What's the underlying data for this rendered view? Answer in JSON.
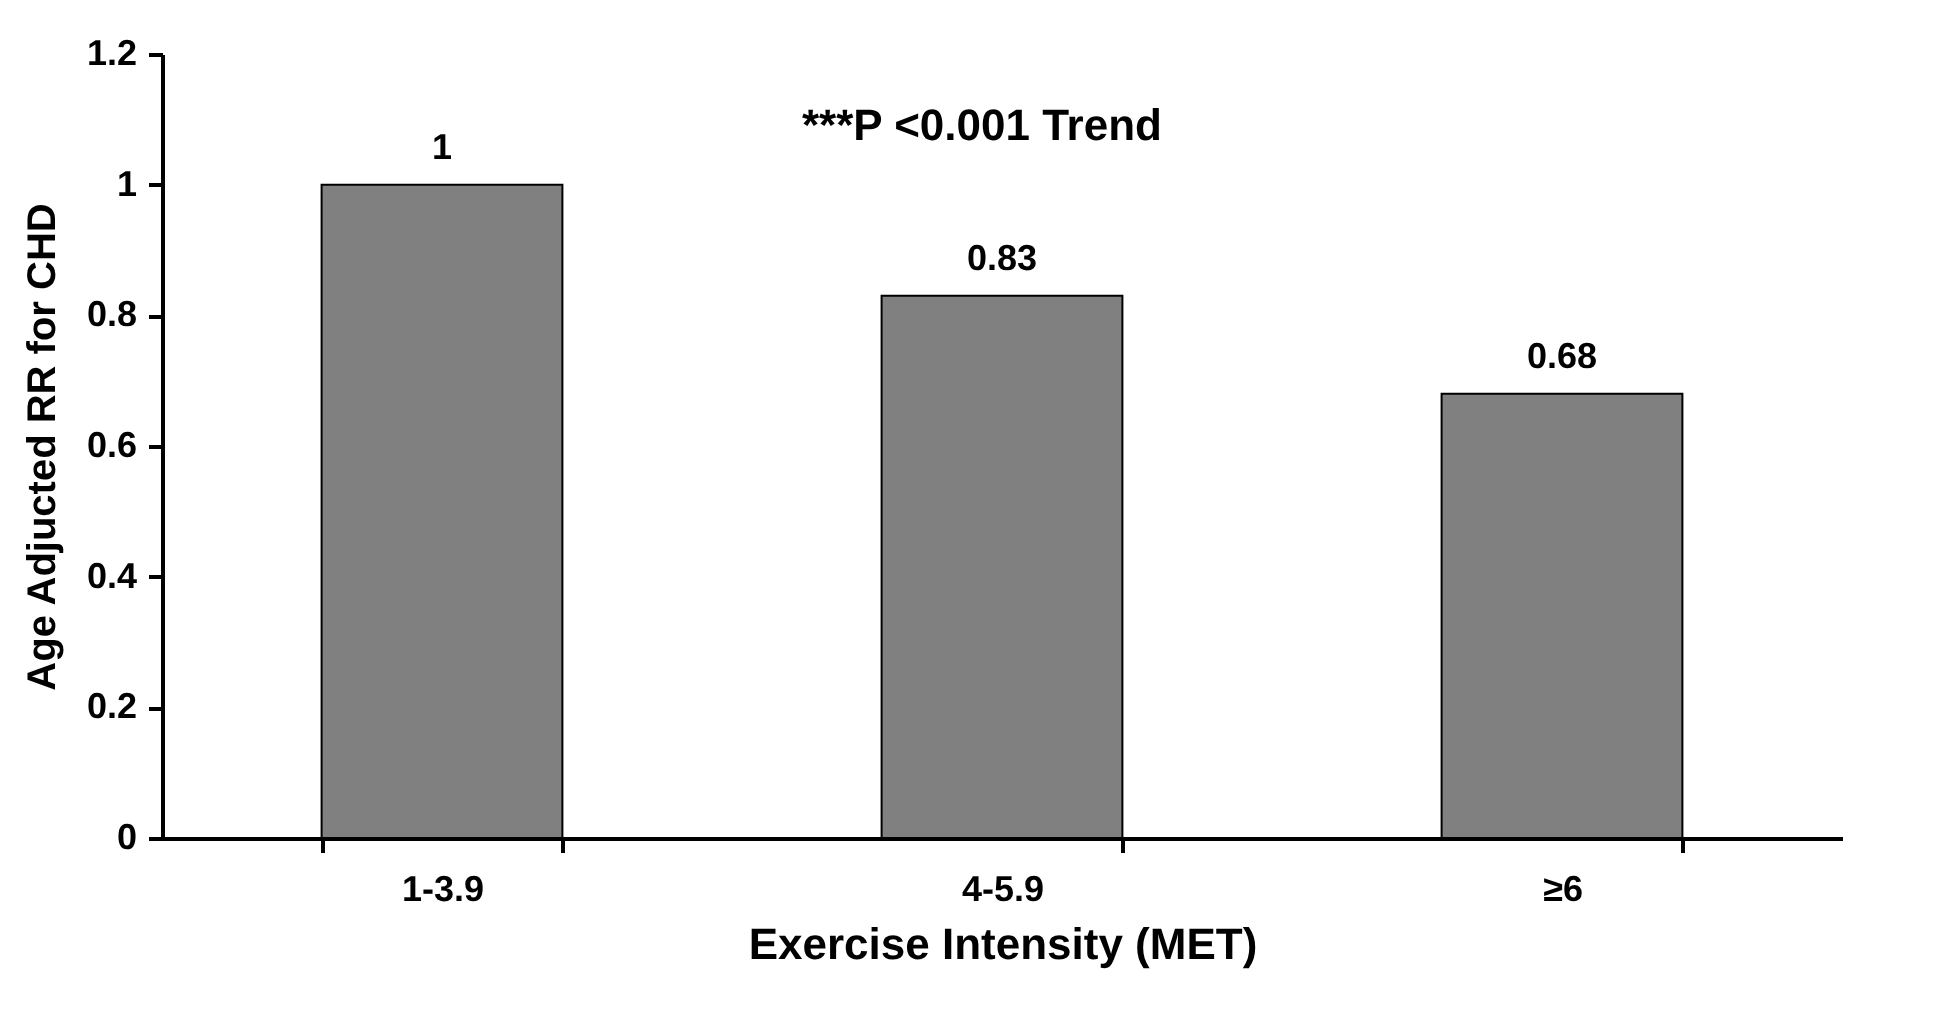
{
  "chart_data": {
    "type": "bar",
    "xlabel": "Exercise Intensity (MET)",
    "ylabel": "Age Adjucted RR for CHD",
    "categories": [
      "1-3.9",
      "4-5.9",
      "≥6"
    ],
    "values": [
      1,
      0.83,
      0.68
    ],
    "color": "#808080",
    "ylim": [
      0,
      1.2
    ],
    "yticks": [
      0,
      0.2,
      0.4,
      0.6,
      0.8,
      1,
      1.2
    ],
    "grid": false,
    "data_labels": true,
    "annotations": [
      "***P <0.001 Trend"
    ]
  }
}
